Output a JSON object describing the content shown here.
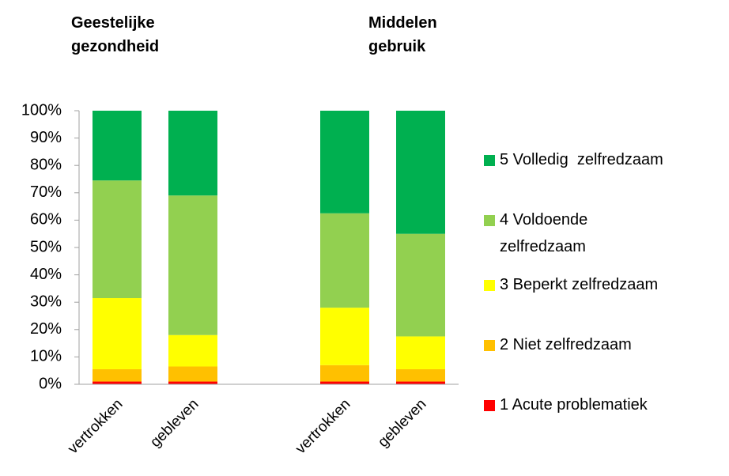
{
  "chart_data": {
    "type": "stacked_bar",
    "annotations": [
      "Geestelijke\ngezondheid",
      "Middelen\ngebruik"
    ],
    "categories": [
      "vertrokken",
      "gebleven",
      null,
      "vertrokken",
      "gebleven"
    ],
    "series": [
      {
        "name": "1 Acute problematiek",
        "color": "#ff0000",
        "values": [
          1,
          1,
          null,
          1,
          1
        ]
      },
      {
        "name": "2 Niet zelfredzaam",
        "color": "#ffc000",
        "values": [
          4.5,
          5.5,
          null,
          6,
          4.5
        ]
      },
      {
        "name": "3 Beperkt zelfredzaam",
        "color": "#ffff00",
        "values": [
          26,
          11.5,
          null,
          21,
          12
        ]
      },
      {
        "name": "4 Voldoende\nzelfredzaam",
        "color": "#92d050",
        "values": [
          43,
          51,
          null,
          34.5,
          37.5
        ]
      },
      {
        "name": "5 Volledig  zelfredzaam",
        "color": "#00b050",
        "values": [
          25.5,
          31,
          null,
          37.5,
          45
        ]
      }
    ],
    "ylim": [
      0,
      100
    ],
    "yticks": [
      {
        "value": 0,
        "label": "0%"
      },
      {
        "value": 10,
        "label": "10%"
      },
      {
        "value": 20,
        "label": "20%"
      },
      {
        "value": 30,
        "label": "30%"
      },
      {
        "value": 40,
        "label": "40%"
      },
      {
        "value": 50,
        "label": "50%"
      },
      {
        "value": 60,
        "label": "60%"
      },
      {
        "value": 70,
        "label": "70%"
      },
      {
        "value": 80,
        "label": "80%"
      },
      {
        "value": 90,
        "label": "90%"
      },
      {
        "value": 100,
        "label": "100%"
      }
    ],
    "legend_position": "right"
  }
}
